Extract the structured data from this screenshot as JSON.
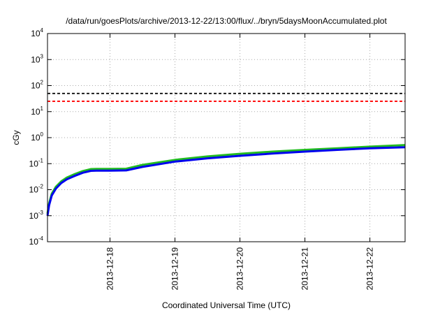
{
  "chart_data": {
    "type": "line",
    "title": "/data/run/goesPlots/archive/2013-12-22/13:00/flux/../bryn/5daysMoonAccumulated.plot",
    "xlabel": "Coordinated Universal Time (UTC)",
    "ylabel": "cGy",
    "y_scale": "log",
    "ylim": [
      0.0001,
      10000
    ],
    "y_ticks": [
      {
        "base": "10",
        "exp": "-4",
        "value": 0.0001
      },
      {
        "base": "10",
        "exp": "-3",
        "value": 0.001
      },
      {
        "base": "10",
        "exp": "-2",
        "value": 0.01
      },
      {
        "base": "10",
        "exp": "-1",
        "value": 0.1
      },
      {
        "base": "10",
        "exp": "0",
        "value": 1
      },
      {
        "base": "10",
        "exp": "1",
        "value": 10
      },
      {
        "base": "10",
        "exp": "2",
        "value": 100
      },
      {
        "base": "10",
        "exp": "3",
        "value": 1000
      },
      {
        "base": "10",
        "exp": "4",
        "value": 10000
      }
    ],
    "xlim": [
      "2013-12-17 00:55",
      "2013-12-22 13:00"
    ],
    "x_ticks": [
      "2013-12-18",
      "2013-12-19",
      "2013-12-20",
      "2013-12-21",
      "2013-12-22"
    ],
    "grid": true,
    "reference_lines": [
      {
        "y": 50,
        "color": "#000000",
        "style": "dashed"
      },
      {
        "y": 25,
        "color": "#ff0000",
        "style": "dashed"
      }
    ],
    "series": [
      {
        "color": "#22bb22",
        "x": [
          "2013-12-17 00:55",
          "2013-12-17 01:30",
          "2013-12-17 02:30",
          "2013-12-17 04:00",
          "2013-12-17 06:00",
          "2013-12-17 08:00",
          "2013-12-17 11:00",
          "2013-12-17 14:00",
          "2013-12-17 17:00",
          "2013-12-17 19:00",
          "2013-12-18 00:00",
          "2013-12-18 06:00",
          "2013-12-18 12:00",
          "2013-12-19 00:00",
          "2013-12-19 12:00",
          "2013-12-20 00:00",
          "2013-12-20 12:00",
          "2013-12-21 00:00",
          "2013-12-21 12:00",
          "2013-12-22 00:00",
          "2013-12-22 13:00"
        ],
        "y": [
          0.0012,
          0.003,
          0.007,
          0.013,
          0.021,
          0.029,
          0.04,
          0.052,
          0.062,
          0.063,
          0.063,
          0.064,
          0.09,
          0.14,
          0.19,
          0.24,
          0.29,
          0.34,
          0.39,
          0.45,
          0.52
        ]
      },
      {
        "color": "#0000ee",
        "x": [
          "2013-12-17 00:55",
          "2013-12-17 01:30",
          "2013-12-17 02:30",
          "2013-12-17 04:00",
          "2013-12-17 06:00",
          "2013-12-17 08:00",
          "2013-12-17 11:00",
          "2013-12-17 14:00",
          "2013-12-17 17:00",
          "2013-12-17 19:00",
          "2013-12-18 00:00",
          "2013-12-18 06:00",
          "2013-12-18 12:00",
          "2013-12-19 00:00",
          "2013-12-19 12:00",
          "2013-12-20 00:00",
          "2013-12-20 12:00",
          "2013-12-21 00:00",
          "2013-12-21 12:00",
          "2013-12-22 00:00",
          "2013-12-22 13:00"
        ],
        "y": [
          0.001,
          0.0025,
          0.006,
          0.011,
          0.018,
          0.025,
          0.034,
          0.045,
          0.053,
          0.054,
          0.054,
          0.055,
          0.075,
          0.12,
          0.16,
          0.2,
          0.245,
          0.29,
          0.34,
          0.39,
          0.43
        ]
      }
    ]
  }
}
